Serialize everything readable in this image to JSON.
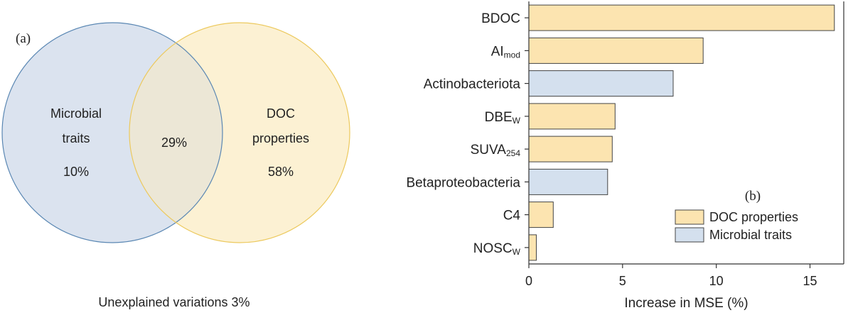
{
  "panel_a": {
    "label": "(a)",
    "circles": [
      {
        "name": "Microbial traits",
        "line1": "Microbial",
        "line2": "traits",
        "pct": "10%",
        "fill": "#dbe3ef",
        "stroke": "#5a87b3"
      },
      {
        "name": "DOC properties",
        "line1": "DOC",
        "line2": "properties",
        "pct": "58%",
        "fill": "#fcf1d3",
        "stroke": "#ecc95d"
      }
    ],
    "overlap": {
      "pct": "29%",
      "fill": "#ece7d6"
    },
    "footer": "Unexplained variations 3%"
  },
  "chart_data": {
    "type": "bar",
    "orientation": "horizontal",
    "panel_label": "(b)",
    "xlabel": "Increase in MSE (%)",
    "ylabel": "",
    "xlim": [
      0,
      16.8
    ],
    "xticks": [
      "0",
      "5",
      "10",
      "15"
    ],
    "categories": [
      {
        "base": "BDOC",
        "sub": ""
      },
      {
        "base": "AI",
        "sub": "mod"
      },
      {
        "base": "Actinobacteriota",
        "sub": ""
      },
      {
        "base": "DBE",
        "sub": "W"
      },
      {
        "base": "SUVA",
        "sub": "254"
      },
      {
        "base": "Betaproteobacteria",
        "sub": ""
      },
      {
        "base": "C4",
        "sub": ""
      },
      {
        "base": "NOSC",
        "sub": "W"
      }
    ],
    "values": [
      16.3,
      9.3,
      7.7,
      4.6,
      4.45,
      4.2,
      1.3,
      0.4
    ],
    "groups": [
      "DOC properties",
      "DOC properties",
      "Microbial traits",
      "DOC properties",
      "DOC properties",
      "Microbial traits",
      "DOC properties",
      "DOC properties"
    ],
    "colors": {
      "DOC properties": "#fce4b0",
      "Microbial traits": "#d4e0ee",
      "bar_stroke": "#444444"
    },
    "legend": {
      "placement": "bottom-right",
      "entries": [
        {
          "label": "DOC properties",
          "color": "#fce4b0"
        },
        {
          "label": "Microbial traits",
          "color": "#d4e0ee"
        }
      ]
    },
    "grid": false
  }
}
